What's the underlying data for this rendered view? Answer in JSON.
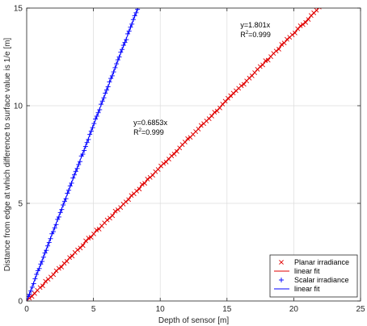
{
  "chart_data": {
    "type": "scatter",
    "xlabel": "Depth of sensor [m]",
    "ylabel": "Distance from edge at which difference to surface value is 1/e [m]",
    "xlim": [
      0,
      25
    ],
    "ylim": [
      0,
      15
    ],
    "xticks": [
      0,
      5,
      10,
      15,
      20,
      25
    ],
    "yticks": [
      0,
      5,
      10,
      15
    ],
    "grid": true,
    "legend_position": "bottom-right",
    "series": [
      {
        "name": "Planar irradiance",
        "marker": "x",
        "color": "#e00000",
        "x_range": [
          0,
          21.9
        ],
        "n_points": 110,
        "slope": 0.6853
      },
      {
        "name": "linear fit",
        "style": "line",
        "color": "#e00000",
        "x_range": [
          0,
          22.3
        ],
        "slope": 0.6853
      },
      {
        "name": "Scalar irradiance",
        "marker": "+",
        "color": "#0000ff",
        "x_range": [
          0,
          8.3
        ],
        "n_points": 80,
        "slope": 1.801
      },
      {
        "name": "linear fit",
        "style": "line",
        "color": "#0000ff",
        "x_range": [
          0,
          8.33
        ],
        "slope": 1.801
      }
    ],
    "annotations": [
      {
        "eq": "y=0.6853x",
        "r2_prefix": "R",
        "r2_exp": "2",
        "r2_suffix": "=0.999",
        "at": [
          8.0,
          9.0
        ]
      },
      {
        "eq": "y=1.801x",
        "r2_prefix": "R",
        "r2_exp": "2",
        "r2_suffix": "=0.999",
        "at": [
          16.0,
          14.0
        ]
      }
    ]
  }
}
